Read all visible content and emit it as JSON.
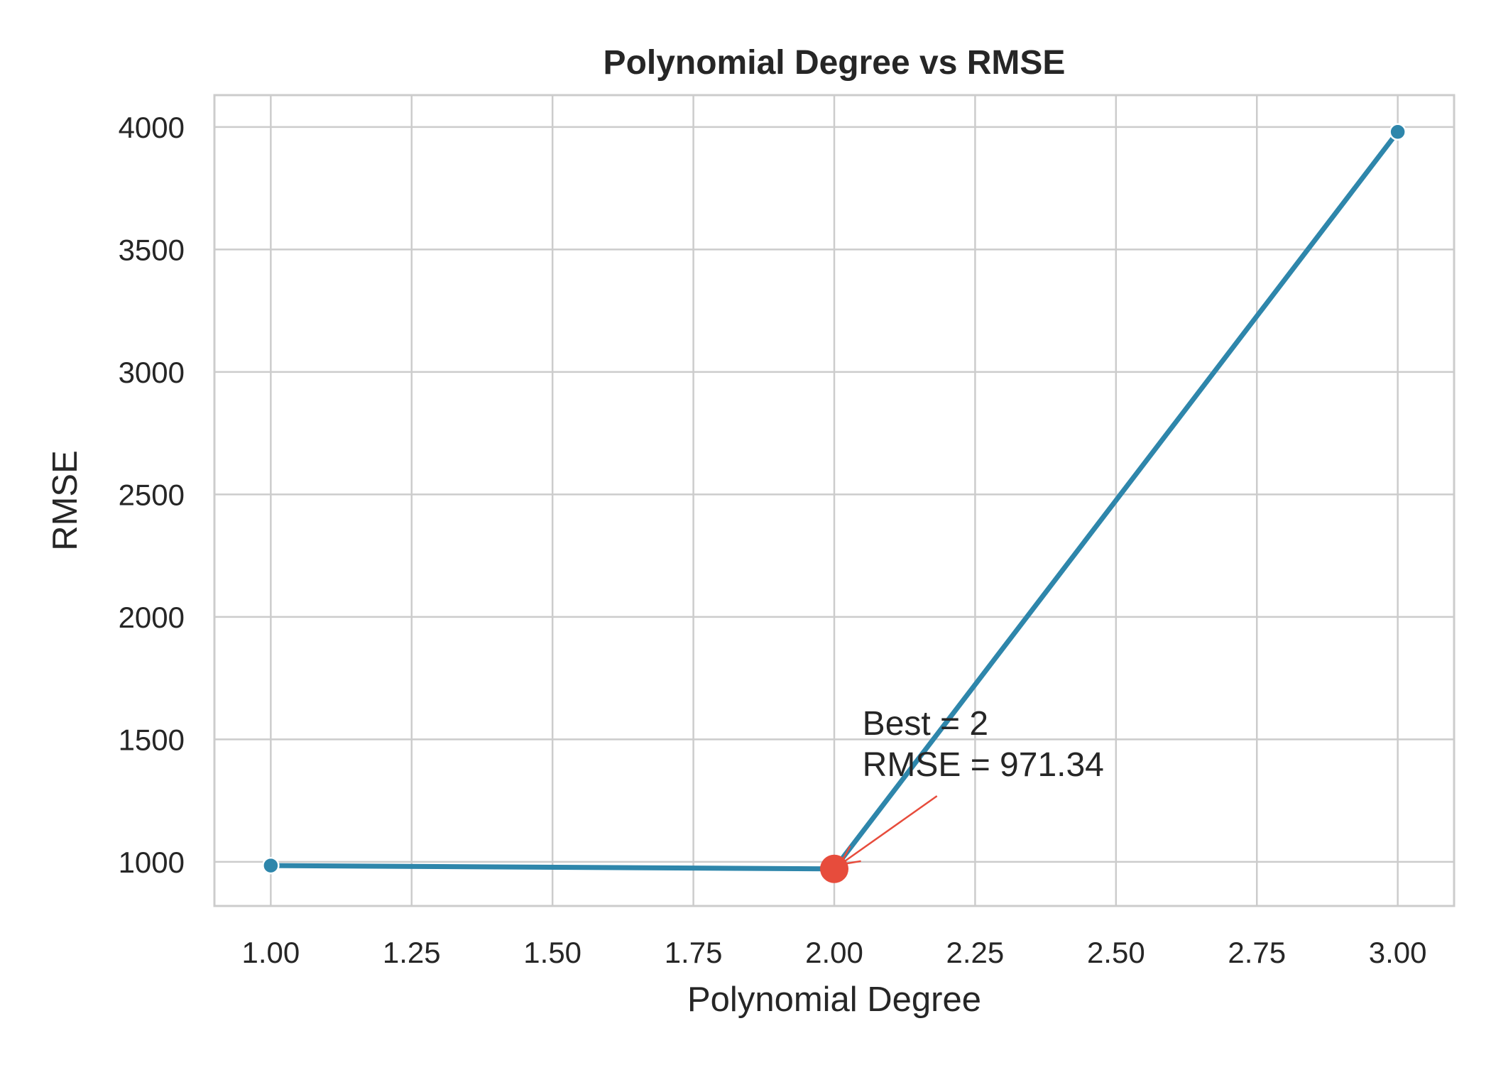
{
  "chart_data": {
    "type": "line",
    "title": "Polynomial Degree vs RMSE",
    "xlabel": "Polynomial Degree",
    "ylabel": "RMSE",
    "xlim": [
      0.9,
      3.1
    ],
    "ylim": [
      820,
      4130
    ],
    "xticks": [
      1.0,
      1.25,
      1.5,
      1.75,
      2.0,
      2.25,
      2.5,
      2.75,
      3.0
    ],
    "xtick_labels": [
      "1.00",
      "1.25",
      "1.50",
      "1.75",
      "2.00",
      "2.25",
      "2.50",
      "2.75",
      "3.00"
    ],
    "yticks": [
      1000,
      1500,
      2000,
      2500,
      3000,
      3500,
      4000
    ],
    "ytick_labels": [
      "1000",
      "1500",
      "2000",
      "2500",
      "3000",
      "3500",
      "4000"
    ],
    "grid": true,
    "series": [
      {
        "x": [
          1,
          2,
          3
        ],
        "y": [
          985,
          971.34,
          3980
        ]
      }
    ],
    "highlight": {
      "x": 2,
      "y": 971.34
    },
    "annotation": {
      "lines": [
        "Best = 2",
        "RMSE = 971.34"
      ],
      "text_at": {
        "x": 2.05,
        "y": 1350
      },
      "points_to": {
        "x": 2,
        "y": 971.34
      }
    },
    "colors": {
      "line": "#2e86ab",
      "highlight": "#e74c3c",
      "grid": "#cccccc",
      "text": "#262626"
    }
  }
}
